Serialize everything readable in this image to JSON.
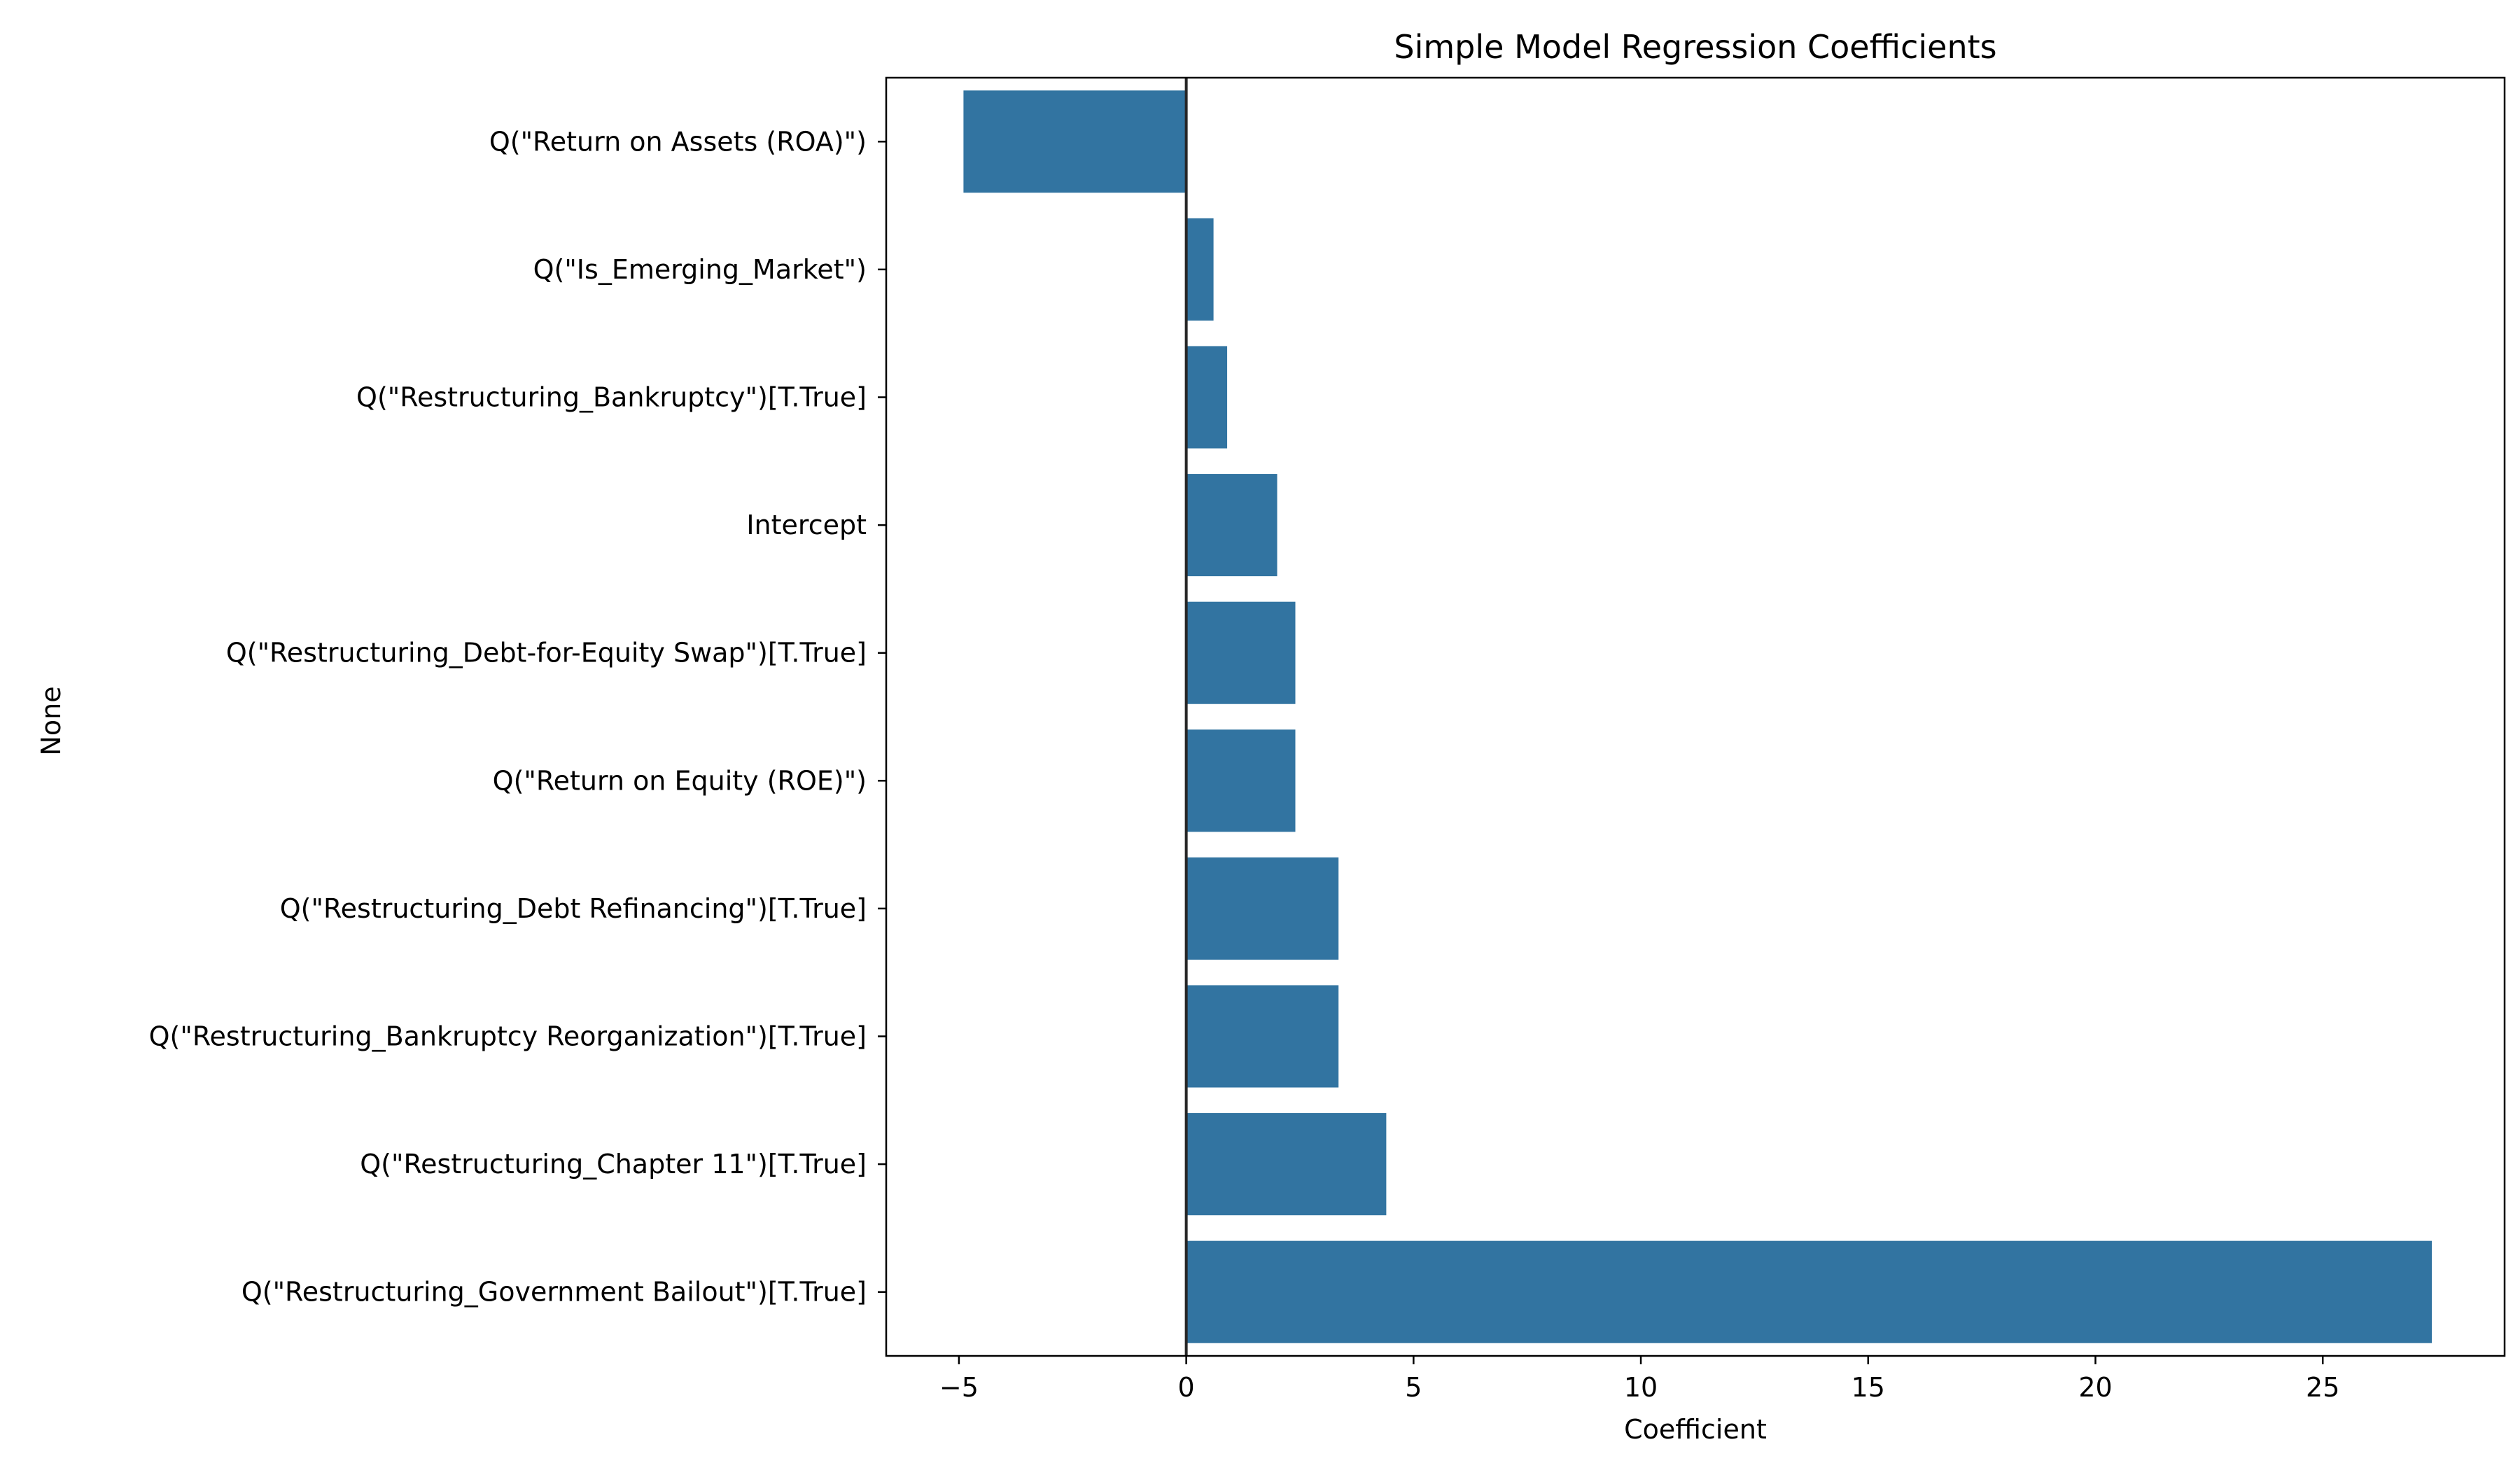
{
  "chart_data": {
    "type": "bar",
    "orientation": "horizontal",
    "title": "Simple Model Regression Coefficients",
    "xlabel": "Coefficient",
    "ylabel": "None",
    "xlim": [
      -6.6,
      29.0
    ],
    "xticks": [
      -5,
      0,
      5,
      10,
      15,
      20,
      25
    ],
    "xtick_labels": [
      "−5",
      "0",
      "5",
      "10",
      "15",
      "20",
      "25"
    ],
    "categories": [
      "Q(\"Return on Assets (ROA)\")",
      "Q(\"Is_Emerging_Market\")",
      "Q(\"Restructuring_Bankruptcy\")[T.True]",
      "Intercept",
      "Q(\"Restructuring_Debt-for-Equity Swap\")[T.True]",
      "Q(\"Return on Equity (ROE)\")",
      "Q(\"Restructuring_Debt Refinancing\")[T.True]",
      "Q(\"Restructuring_Bankruptcy Reorganization\")[T.True]",
      "Q(\"Restructuring_Chapter 11\")[T.True]",
      "Q(\"Restructuring_Government Bailout\")[T.True]"
    ],
    "values": [
      -4.9,
      0.6,
      0.9,
      2.0,
      2.4,
      2.4,
      3.35,
      3.35,
      4.4,
      27.4
    ],
    "reference_line_x": 0,
    "bar_color": "#3274a1",
    "axis_color": "#000000",
    "grid": false,
    "legend": "none"
  }
}
